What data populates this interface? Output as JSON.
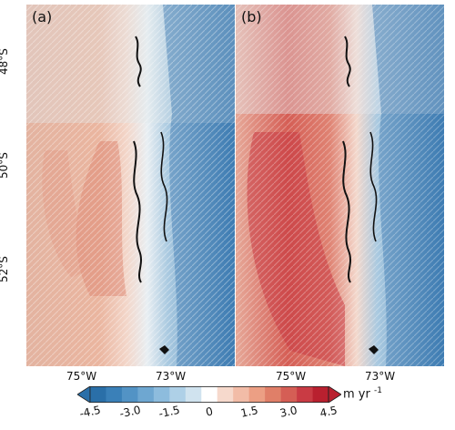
{
  "panels": [
    {
      "label": "(a)"
    },
    {
      "label": "(b)"
    }
  ],
  "latitude_labels": [
    "48°S",
    "50°S",
    "52°S"
  ],
  "longitude_labels": [
    "75°W",
    "73°W"
  ],
  "colorbar": {
    "tick_labels": [
      "-4.5",
      "-3.0",
      "-1.5",
      "0",
      "1.5",
      "3.0",
      "4.5"
    ],
    "unit": "m yr",
    "unit_exponent": "-1",
    "range": [
      -4.5,
      4.5
    ],
    "colors_negative": [
      "#2a6fa8",
      "#3a80b8",
      "#5293c5",
      "#6ea7d1",
      "#8dbcdd",
      "#aed0e7",
      "#d0e3ef"
    ],
    "colors_positive": [
      "#f6d9cc",
      "#f2bca7",
      "#ec9f84",
      "#e07f68",
      "#d55e55",
      "#c93b44",
      "#b9202f"
    ]
  }
}
